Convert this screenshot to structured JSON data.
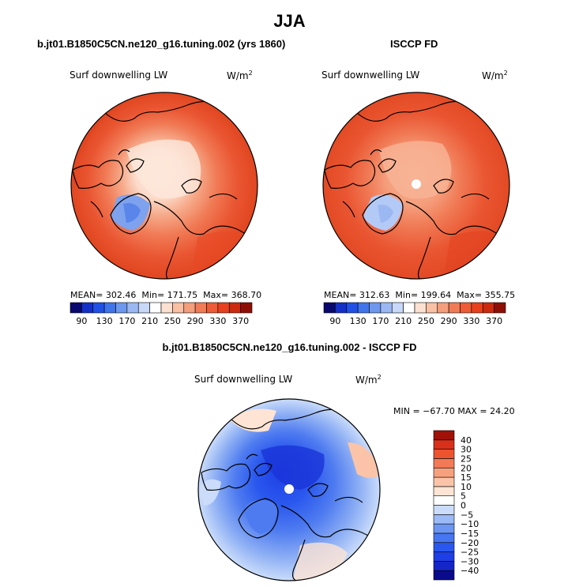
{
  "figure": {
    "title": "JJA",
    "colors": {
      "coast": "#000000",
      "background": "#ffffff"
    }
  },
  "chart_data": [
    {
      "type": "heatmap",
      "projection": "north-polar-stereographic",
      "title": "b.jt01.B1850C5CN.ne120_g16.tuning.002 (yrs 1860)",
      "variable": "Surf downwelling LW",
      "units_base": "W/m",
      "units_exp": "2",
      "stats": {
        "mean": "302.46",
        "min": "171.75",
        "max": "368.70"
      },
      "stats_labels": {
        "mean": "MEAN=",
        "min": "Min=",
        "max": "Max="
      },
      "levels": [
        90,
        130,
        170,
        210,
        250,
        290,
        330,
        370
      ],
      "colorbar_colors": [
        "#08086e",
        "#1530c8",
        "#2050e6",
        "#3f74ea",
        "#6e98ee",
        "#9bb8f3",
        "#c8d8f8",
        "#ffffff",
        "#fce0d0",
        "#f9c0a4",
        "#f59e7c",
        "#f27b57",
        "#ef5b36",
        "#e8401e",
        "#cc2a0e",
        "#8e0e05"
      ],
      "field_summary": {
        "polar_cap": "250-290",
        "greenland_interior": "170-250",
        "midlatitudes": "330-370"
      }
    },
    {
      "type": "heatmap",
      "projection": "north-polar-stereographic",
      "title": "ISCCP FD",
      "variable": "Surf downwelling LW",
      "units_base": "W/m",
      "units_exp": "2",
      "stats": {
        "mean": "312.63",
        "min": "199.64",
        "max": "355.75"
      },
      "stats_labels": {
        "mean": "MEAN=",
        "min": "Min=",
        "max": "Max="
      },
      "levels": [
        90,
        130,
        170,
        210,
        250,
        290,
        330,
        370
      ],
      "colorbar_colors": [
        "#08086e",
        "#1530c8",
        "#2050e6",
        "#3f74ea",
        "#6e98ee",
        "#9bb8f3",
        "#c8d8f8",
        "#ffffff",
        "#fce0d0",
        "#f9c0a4",
        "#f59e7c",
        "#f27b57",
        "#ef5b36",
        "#e8401e",
        "#cc2a0e",
        "#8e0e05"
      ],
      "field_summary": {
        "polar_cap": "290-330",
        "greenland_interior": "210-290",
        "midlatitudes": "330-370",
        "pole_hole": "missing"
      }
    },
    {
      "type": "heatmap",
      "projection": "north-polar-stereographic",
      "title": "b.jt01.B1850C5CN.ne120_g16.tuning.002 - ISCCP FD",
      "variable": "Surf downwelling LW",
      "units_base": "W/m",
      "units_exp": "2",
      "stats_line": "MIN = −67.70 MAX =  24.20",
      "stats": {
        "min": -67.7,
        "max": 24.2
      },
      "levels": [
        -40,
        -30,
        -25,
        -20,
        -15,
        -10,
        -5,
        0,
        5,
        10,
        15,
        20,
        25,
        30,
        40
      ],
      "level_labels": [
        "−40",
        "−30",
        "−25",
        "−20",
        "−15",
        "−10",
        "−5",
        "0",
        "5",
        "10",
        "15",
        "20",
        "25",
        "30",
        "40"
      ],
      "colorbar_colors": [
        "#0a0a8c",
        "#1526c8",
        "#1e3ee6",
        "#2a58ee",
        "#4676f0",
        "#6c96f2",
        "#9cbaf6",
        "#cadcfa",
        "#ffffff",
        "#fde4d4",
        "#fbc4a8",
        "#f7a07e",
        "#f37a56",
        "#ec5430",
        "#d8301a",
        "#a01208"
      ],
      "field_summary": {
        "central_arctic": "-30 to -15",
        "greenland": "-25 to -10",
        "north_atlantic": "-10 to 0",
        "siberia_edges": "0 to 15"
      }
    }
  ]
}
